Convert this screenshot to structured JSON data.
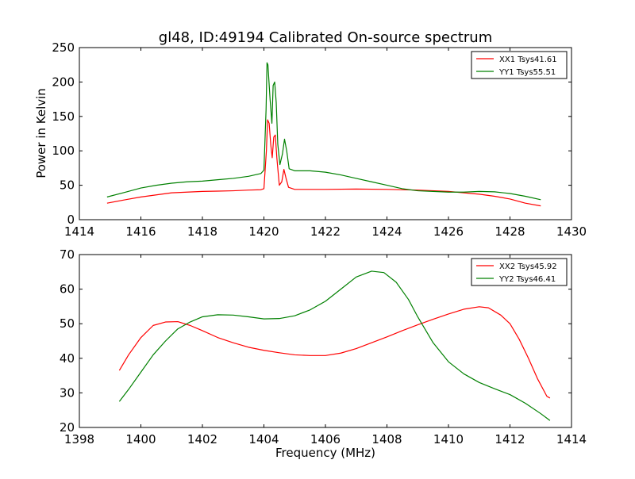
{
  "chart_data": [
    {
      "type": "line",
      "title": "gl48, ID:49194 Calibrated On-source spectrum",
      "xlabel": "",
      "ylabel": "Power in Kelvin",
      "xlim": [
        1414,
        1430
      ],
      "ylim": [
        0,
        250
      ],
      "xticks": [
        1414,
        1416,
        1418,
        1420,
        1422,
        1424,
        1426,
        1428,
        1430
      ],
      "yticks": [
        0,
        50,
        100,
        150,
        200,
        250
      ],
      "legend_position": "top-right",
      "series": [
        {
          "name": "XX1 Tsys41.61",
          "color": "#ff0000",
          "points": [
            [
              1414.9,
              24
            ],
            [
              1415.5,
              29
            ],
            [
              1416,
              33
            ],
            [
              1416.5,
              36
            ],
            [
              1417,
              39
            ],
            [
              1417.5,
              40
            ],
            [
              1418,
              41
            ],
            [
              1418.5,
              41.5
            ],
            [
              1419,
              42
            ],
            [
              1419.5,
              43
            ],
            [
              1419.9,
              43.5
            ],
            [
              1420,
              45
            ],
            [
              1420.08,
              100
            ],
            [
              1420.12,
              145
            ],
            [
              1420.17,
              140
            ],
            [
              1420.22,
              110
            ],
            [
              1420.27,
              90
            ],
            [
              1420.32,
              120
            ],
            [
              1420.37,
              123
            ],
            [
              1420.42,
              90
            ],
            [
              1420.5,
              50
            ],
            [
              1420.58,
              55
            ],
            [
              1420.65,
              73
            ],
            [
              1420.72,
              60
            ],
            [
              1420.8,
              47
            ],
            [
              1421,
              44
            ],
            [
              1421.5,
              44
            ],
            [
              1422,
              44
            ],
            [
              1423,
              44.5
            ],
            [
              1424,
              44
            ],
            [
              1425,
              43
            ],
            [
              1426,
              41
            ],
            [
              1427,
              37
            ],
            [
              1427.5,
              34
            ],
            [
              1428,
              30
            ],
            [
              1428.5,
              24
            ],
            [
              1429,
              20
            ]
          ]
        },
        {
          "name": "YY1 Tsys55.51",
          "color": "#008000",
          "points": [
            [
              1414.9,
              33
            ],
            [
              1415.5,
              40
            ],
            [
              1416,
              46
            ],
            [
              1416.5,
              50
            ],
            [
              1417,
              53
            ],
            [
              1417.5,
              55
            ],
            [
              1418,
              56
            ],
            [
              1418.5,
              58
            ],
            [
              1419,
              60
            ],
            [
              1419.5,
              63
            ],
            [
              1419.9,
              67
            ],
            [
              1420,
              72
            ],
            [
              1420.07,
              160
            ],
            [
              1420.1,
              228
            ],
            [
              1420.13,
              225
            ],
            [
              1420.2,
              175
            ],
            [
              1420.26,
              140
            ],
            [
              1420.3,
              195
            ],
            [
              1420.35,
              200
            ],
            [
              1420.4,
              170
            ],
            [
              1420.45,
              110
            ],
            [
              1420.52,
              80
            ],
            [
              1420.6,
              95
            ],
            [
              1420.67,
              117
            ],
            [
              1420.74,
              100
            ],
            [
              1420.82,
              74
            ],
            [
              1421,
              71
            ],
            [
              1421.5,
              71
            ],
            [
              1422,
              69
            ],
            [
              1422.5,
              65
            ],
            [
              1423,
              60
            ],
            [
              1423.5,
              55
            ],
            [
              1424,
              50
            ],
            [
              1424.5,
              45
            ],
            [
              1425,
              42
            ],
            [
              1425.5,
              41
            ],
            [
              1426,
              40
            ],
            [
              1426.5,
              40
            ],
            [
              1427,
              41
            ],
            [
              1427.5,
              40.5
            ],
            [
              1428,
              38
            ],
            [
              1428.5,
              34
            ],
            [
              1429,
              29
            ]
          ]
        }
      ]
    },
    {
      "type": "line",
      "title": "",
      "xlabel": "Frequency (MHz)",
      "ylabel": "",
      "xlim": [
        1398,
        1414
      ],
      "ylim": [
        20,
        70
      ],
      "xticks": [
        1398,
        1400,
        1402,
        1404,
        1406,
        1408,
        1410,
        1412,
        1414
      ],
      "yticks": [
        20,
        30,
        40,
        50,
        60,
        70
      ],
      "legend_position": "top-right",
      "series": [
        {
          "name": "XX2 Tsys45.92",
          "color": "#ff0000",
          "points": [
            [
              1399.3,
              36.5
            ],
            [
              1399.6,
              41
            ],
            [
              1400,
              46
            ],
            [
              1400.4,
              49.5
            ],
            [
              1400.8,
              50.5
            ],
            [
              1401.2,
              50.6
            ],
            [
              1401.6,
              49.5
            ],
            [
              1402,
              48
            ],
            [
              1402.5,
              46
            ],
            [
              1403,
              44.5
            ],
            [
              1403.5,
              43.2
            ],
            [
              1404,
              42.3
            ],
            [
              1404.5,
              41.6
            ],
            [
              1405,
              41
            ],
            [
              1405.5,
              40.8
            ],
            [
              1406,
              40.8
            ],
            [
              1406.5,
              41.5
            ],
            [
              1407,
              42.8
            ],
            [
              1407.5,
              44.5
            ],
            [
              1408,
              46.2
            ],
            [
              1408.5,
              48
            ],
            [
              1409,
              49.7
            ],
            [
              1409.5,
              51.3
            ],
            [
              1410,
              52.8
            ],
            [
              1410.5,
              54.2
            ],
            [
              1411,
              54.9
            ],
            [
              1411.3,
              54.6
            ],
            [
              1411.7,
              52.5
            ],
            [
              1412,
              50
            ],
            [
              1412.3,
              45.5
            ],
            [
              1412.6,
              40
            ],
            [
              1412.9,
              34
            ],
            [
              1413.2,
              29
            ],
            [
              1413.3,
              28.5
            ]
          ]
        },
        {
          "name": "YY2 Tsys46.41",
          "color": "#008000",
          "points": [
            [
              1399.3,
              27.5
            ],
            [
              1399.6,
              31
            ],
            [
              1400,
              36
            ],
            [
              1400.4,
              41
            ],
            [
              1400.8,
              45
            ],
            [
              1401.2,
              48.5
            ],
            [
              1401.6,
              50.5
            ],
            [
              1402,
              52
            ],
            [
              1402.5,
              52.6
            ],
            [
              1403,
              52.5
            ],
            [
              1403.5,
              52
            ],
            [
              1404,
              51.4
            ],
            [
              1404.5,
              51.5
            ],
            [
              1405,
              52.3
            ],
            [
              1405.5,
              54
            ],
            [
              1406,
              56.5
            ],
            [
              1406.5,
              60
            ],
            [
              1407,
              63.5
            ],
            [
              1407.5,
              65.2
            ],
            [
              1407.9,
              64.8
            ],
            [
              1408.3,
              62
            ],
            [
              1408.7,
              57
            ],
            [
              1409,
              52
            ],
            [
              1409.5,
              44.5
            ],
            [
              1410,
              39
            ],
            [
              1410.5,
              35.5
            ],
            [
              1411,
              33
            ],
            [
              1411.5,
              31.2
            ],
            [
              1412,
              29.5
            ],
            [
              1412.5,
              27
            ],
            [
              1413,
              24
            ],
            [
              1413.3,
              22
            ]
          ]
        }
      ]
    }
  ]
}
